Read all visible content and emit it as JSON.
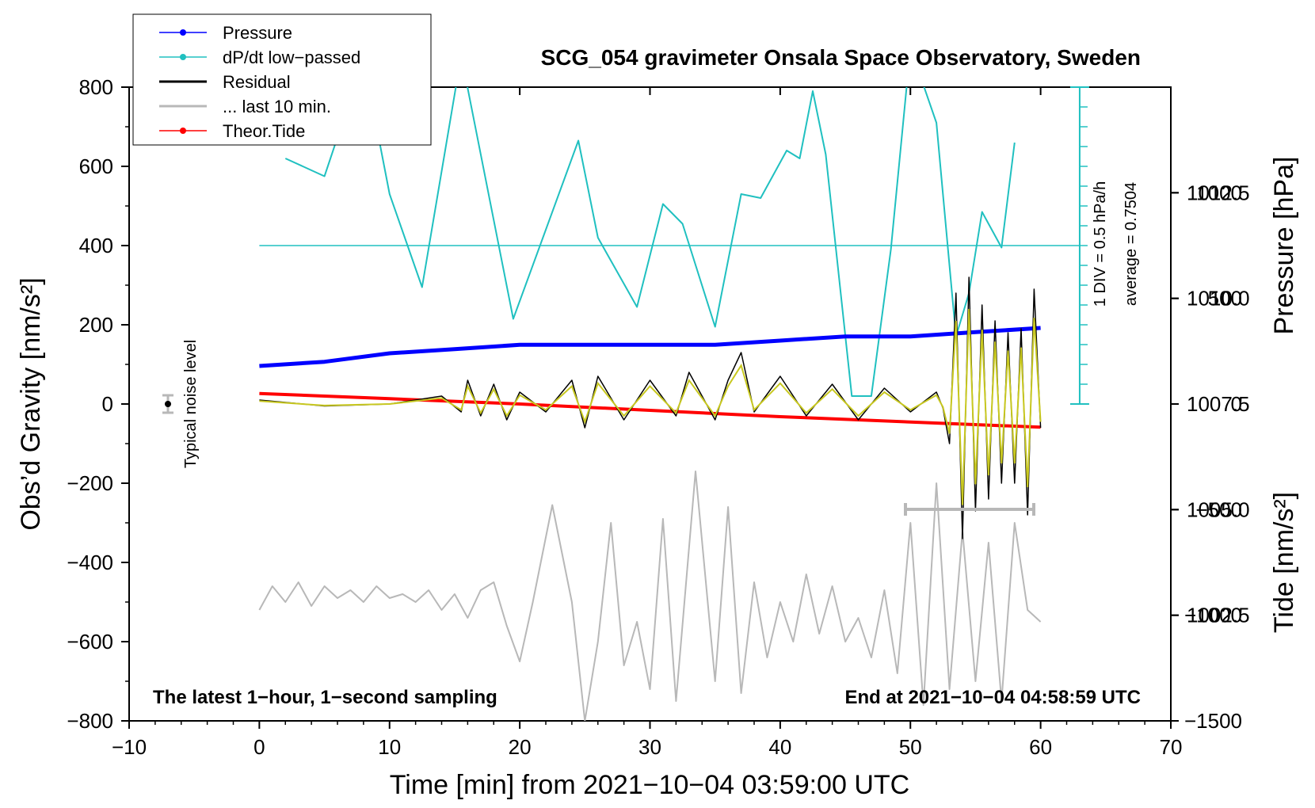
{
  "chart_data": {
    "type": "line",
    "title": "SCG_054 gravimeter Onsala Space Observatory, Sweden",
    "xlabel": "Time [min] from 2021−10−04 03:59:00 UTC",
    "ylabel_left": "Obs’d Gravity [nm/s²]",
    "ylabel_right_top": "Pressure [hPa]",
    "ylabel_right_bottom": "Tide [nm/s²]",
    "xlim": [
      -10,
      70
    ],
    "ylim_left": [
      -800,
      800
    ],
    "pressure_range": [
      1000,
      1015
    ],
    "tide_range": [
      -1500,
      1500
    ],
    "x_ticks": [
      -10,
      0,
      10,
      20,
      30,
      40,
      50,
      60,
      70
    ],
    "x_tick_labels": [
      "−10",
      "0",
      "10",
      "20",
      "30",
      "40",
      "50",
      "60",
      "70"
    ],
    "left_ticks": [
      800,
      600,
      400,
      200,
      0,
      -200,
      -400,
      -600,
      -800
    ],
    "left_tick_labels": [
      "800",
      "600",
      "400",
      "200",
      "0",
      "−200",
      "−400",
      "−600",
      "−800"
    ],
    "pressure_ticks": [
      1012.5,
      1010.0,
      1007.5,
      1005.0,
      1002.5
    ],
    "pressure_tick_labels": [
      "1012.5",
      "1010.0",
      "1007.5",
      "1005.0",
      "1002.5"
    ],
    "tide_ticks": [
      1000,
      500,
      0,
      -500,
      -1000,
      -1500
    ],
    "tide_tick_labels": [
      "1000",
      "500",
      "0",
      "−500",
      "−1000",
      "−1500"
    ],
    "legend": [
      {
        "label": "Pressure",
        "color": "#0000ff",
        "marker": true
      },
      {
        "label": "dP/dt low−passed",
        "color": "#20c0c0",
        "marker": true
      },
      {
        "label": "Residual",
        "color": "#000000",
        "marker": false
      },
      {
        "label": "... last 10 min.",
        "color": "#b8b8b8",
        "marker": false
      },
      {
        "label": "Theor.Tide",
        "color": "#ff0000",
        "marker": true
      }
    ],
    "annotations": {
      "noise_label": "Typical noise level",
      "div_label": "1 DIV = 0.5 hPa/h",
      "average_label": "average = 0.7504",
      "footer_left": "The latest 1−hour, 1−second sampling",
      "footer_right": "End at 2021−10−04 04:58:59 UTC"
    },
    "series": [
      {
        "name": "Pressure",
        "axis": "pressure",
        "color": "#0000ff",
        "x": [
          0,
          5,
          10,
          15,
          20,
          25,
          30,
          35,
          40,
          45,
          50,
          55,
          60
        ],
        "y": [
          1008.4,
          1008.5,
          1008.7,
          1008.8,
          1008.9,
          1008.9,
          1008.9,
          1008.9,
          1009.0,
          1009.1,
          1009.1,
          1009.2,
          1009.3
        ]
      },
      {
        "name": "dP/dt low−passed",
        "axis": "left",
        "color": "#20c0c0",
        "x": [
          2,
          5,
          8,
          10,
          12.5,
          15.5,
          19.5,
          24.5,
          26,
          29,
          31,
          32.5,
          35,
          37,
          38.5,
          40.5,
          41.5,
          42.5,
          43.5,
          45.5,
          47,
          48.5,
          50,
          52,
          53.5,
          54.5,
          55.5,
          57,
          58
        ],
        "y": [
          620,
          575,
          870,
          530,
          295,
          880,
          215,
          665,
          420,
          245,
          505,
          455,
          195,
          530,
          520,
          640,
          620,
          790,
          630,
          20,
          20,
          390,
          900,
          710,
          170,
          280,
          485,
          395,
          660
        ]
      },
      {
        "name": "Residual",
        "axis": "left",
        "color": "#000000",
        "x": [
          0,
          5,
          10,
          12,
          14,
          15.5,
          16,
          17,
          18,
          19,
          20,
          22,
          24,
          25,
          26,
          28,
          30,
          32,
          33,
          35,
          36,
          37,
          38,
          40,
          42,
          44,
          46,
          48,
          50,
          52,
          52.5,
          53,
          53.5,
          54,
          54.5,
          55,
          55.5,
          56,
          56.5,
          57,
          57.5,
          58,
          58.5,
          59,
          59.5,
          60
        ],
        "y": [
          10,
          -5,
          0,
          10,
          20,
          -20,
          60,
          -30,
          50,
          -40,
          30,
          -20,
          60,
          -60,
          70,
          -40,
          60,
          -30,
          80,
          -40,
          60,
          130,
          -20,
          70,
          -30,
          50,
          -40,
          40,
          -20,
          30,
          -10,
          -100,
          280,
          -340,
          320,
          -270,
          250,
          -240,
          210,
          -200,
          180,
          -200,
          190,
          -280,
          290,
          -60
        ]
      },
      {
        "name": "... last 10 min.",
        "axis": "left",
        "color": "#b8b8b8",
        "x": [
          0,
          1,
          2,
          3,
          4,
          5,
          6,
          7,
          8,
          9,
          10,
          11,
          12,
          13,
          14,
          15,
          16,
          17,
          18,
          19,
          20,
          21,
          22.5,
          24,
          25,
          26,
          27,
          28,
          29,
          30,
          31,
          32,
          33.5,
          35,
          36,
          37,
          38,
          39,
          40,
          41,
          42,
          43,
          44,
          45,
          46,
          47,
          48,
          49,
          50,
          51,
          52,
          53,
          54,
          55,
          56,
          57,
          58,
          59,
          60
        ],
        "y": [
          -520,
          -460,
          -500,
          -450,
          -510,
          -460,
          -490,
          -470,
          -500,
          -460,
          -490,
          -480,
          -500,
          -470,
          -520,
          -480,
          -540,
          -470,
          -450,
          -560,
          -650,
          -500,
          -255,
          -500,
          -800,
          -600,
          -300,
          -660,
          -550,
          -720,
          -290,
          -750,
          -170,
          -700,
          -260,
          -730,
          -450,
          -640,
          -500,
          -600,
          -430,
          -580,
          -460,
          -600,
          -540,
          -640,
          -470,
          -680,
          -300,
          -760,
          -200,
          -720,
          -320,
          -700,
          -350,
          -750,
          -300,
          -520,
          -550
        ]
      },
      {
        "name": "Theor.Tide",
        "axis": "tide",
        "color": "#ff0000",
        "x": [
          0,
          10,
          20,
          30,
          40,
          50,
          60
        ],
        "y": [
          50,
          25,
          0,
          -30,
          -60,
          -85,
          -110
        ]
      }
    ]
  }
}
